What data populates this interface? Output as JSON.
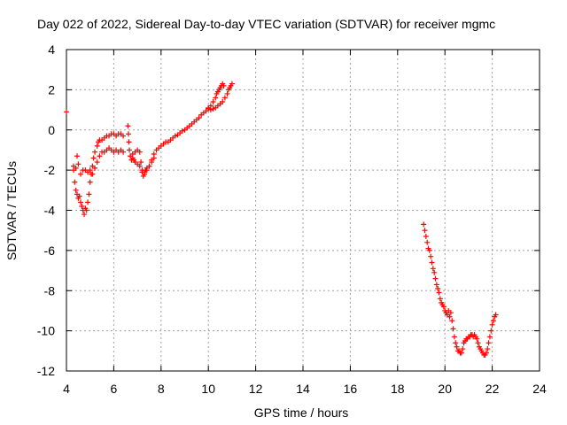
{
  "chart_data": {
    "type": "scatter",
    "title": "Day 022 of 2022, Sidereal Day-to-day VTEC variation (SDTVAR) for receiver mgmc",
    "xlabel": "GPS time / hours",
    "ylabel": "SDTVAR / TECUs",
    "xlim": [
      4,
      24
    ],
    "ylim": [
      -12,
      4
    ],
    "x_ticks": [
      4,
      6,
      8,
      10,
      12,
      14,
      16,
      18,
      20,
      22,
      24
    ],
    "y_ticks": [
      4,
      2,
      0,
      -2,
      -4,
      -6,
      -8,
      -10,
      -12
    ],
    "grid": true,
    "marker": "+",
    "colors": {
      "series": "#ff0000",
      "axes": "#000000",
      "grid": "#a0a0a0"
    },
    "series": [
      {
        "name": "mgmc",
        "segments": [
          [
            [
              4.0,
              0.9
            ]
          ],
          [
            [
              4.3,
              -1.8
            ],
            [
              4.4,
              -1.9
            ],
            [
              4.45,
              -1.3
            ],
            [
              4.5,
              -1.7
            ],
            [
              4.6,
              -2.2
            ],
            [
              4.7,
              -2.0
            ],
            [
              4.8,
              -2.0
            ],
            [
              4.9,
              -2.1
            ],
            [
              5.0,
              -2.0
            ],
            [
              5.1,
              -2.2
            ],
            [
              5.2,
              -1.9
            ],
            [
              5.3,
              -1.6
            ],
            [
              5.4,
              -1.3
            ],
            [
              5.5,
              -1.1
            ],
            [
              5.6,
              -1.1
            ],
            [
              5.7,
              -1.0
            ],
            [
              5.8,
              -0.9
            ],
            [
              5.9,
              -1.0
            ],
            [
              6.0,
              -1.1
            ],
            [
              6.1,
              -1.0
            ],
            [
              6.2,
              -1.1
            ],
            [
              6.3,
              -1.0
            ],
            [
              6.4,
              -1.1
            ]
          ],
          [
            [
              4.3,
              -2.0
            ],
            [
              4.35,
              -2.6
            ],
            [
              4.4,
              -3.0
            ],
            [
              4.45,
              -3.2
            ],
            [
              4.5,
              -3.4
            ],
            [
              4.55,
              -3.3
            ],
            [
              4.6,
              -3.6
            ],
            [
              4.65,
              -3.8
            ],
            [
              4.7,
              -4.0
            ],
            [
              4.75,
              -4.2
            ],
            [
              4.8,
              -3.9
            ],
            [
              4.85,
              -4.0
            ],
            [
              4.9,
              -3.6
            ],
            [
              4.95,
              -3.2
            ],
            [
              5.0,
              -2.6
            ],
            [
              5.05,
              -2.2
            ],
            [
              5.1,
              -1.8
            ],
            [
              5.15,
              -1.4
            ],
            [
              5.2,
              -1.1
            ],
            [
              5.3,
              -0.8
            ],
            [
              5.35,
              -0.6
            ],
            [
              5.4,
              -0.5
            ],
            [
              5.5,
              -0.5
            ],
            [
              5.6,
              -0.4
            ],
            [
              5.7,
              -0.3
            ],
            [
              5.8,
              -0.3
            ],
            [
              5.9,
              -0.2
            ],
            [
              6.0,
              -0.2
            ],
            [
              6.1,
              -0.3
            ],
            [
              6.2,
              -0.2
            ],
            [
              6.3,
              -0.2
            ],
            [
              6.4,
              -0.3
            ]
          ],
          [
            [
              6.6,
              0.2
            ],
            [
              6.62,
              -0.2
            ],
            [
              6.64,
              -0.6
            ],
            [
              6.66,
              -1.0
            ],
            [
              6.7,
              -1.3
            ],
            [
              6.75,
              -1.5
            ],
            [
              6.8,
              -1.4
            ],
            [
              6.85,
              -1.5
            ],
            [
              6.9,
              -1.6
            ],
            [
              7.0,
              -1.7
            ],
            [
              7.1,
              -1.8
            ],
            [
              7.2,
              -2.0
            ],
            [
              7.3,
              -2.1
            ],
            [
              7.35,
              -2.0
            ],
            [
              7.4,
              -1.9
            ],
            [
              7.5,
              -1.8
            ],
            [
              7.6,
              -1.6
            ],
            [
              7.7,
              -1.4
            ]
          ],
          [
            [
              6.8,
              -1.2
            ],
            [
              6.9,
              -1.1
            ],
            [
              7.0,
              -1.0
            ],
            [
              7.1,
              -1.1
            ],
            [
              7.15,
              -1.6
            ],
            [
              7.2,
              -2.1
            ],
            [
              7.25,
              -2.3
            ],
            [
              7.3,
              -2.2
            ],
            [
              7.4,
              -2.0
            ],
            [
              7.5,
              -1.8
            ],
            [
              7.6,
              -1.5
            ],
            [
              7.7,
              -1.2
            ],
            [
              7.8,
              -1.0
            ],
            [
              7.9,
              -0.9
            ],
            [
              8.0,
              -0.8
            ],
            [
              8.1,
              -0.7
            ],
            [
              8.2,
              -0.6
            ],
            [
              8.3,
              -0.6
            ],
            [
              8.4,
              -0.5
            ],
            [
              8.5,
              -0.4
            ],
            [
              8.6,
              -0.3
            ],
            [
              8.7,
              -0.25
            ],
            [
              8.8,
              -0.15
            ],
            [
              8.9,
              -0.05
            ],
            [
              9.0,
              0.0
            ],
            [
              9.1,
              0.1
            ],
            [
              9.2,
              0.2
            ],
            [
              9.3,
              0.3
            ],
            [
              9.4,
              0.4
            ],
            [
              9.5,
              0.5
            ],
            [
              9.6,
              0.6
            ],
            [
              9.7,
              0.75
            ],
            [
              9.8,
              0.85
            ],
            [
              9.9,
              0.95
            ],
            [
              10.0,
              1.05
            ],
            [
              10.1,
              1.0
            ],
            [
              10.2,
              1.05
            ],
            [
              10.3,
              1.1
            ],
            [
              10.4,
              1.2
            ],
            [
              10.5,
              1.3
            ],
            [
              10.6,
              1.4
            ],
            [
              10.7,
              1.6
            ],
            [
              10.8,
              1.8
            ],
            [
              10.85,
              2.0
            ],
            [
              10.9,
              2.1
            ],
            [
              10.95,
              2.2
            ],
            [
              11.0,
              2.3
            ]
          ],
          [
            [
              10.0,
              1.1
            ],
            [
              10.1,
              1.2
            ],
            [
              10.2,
              1.4
            ],
            [
              10.3,
              1.6
            ],
            [
              10.35,
              1.8
            ],
            [
              10.4,
              1.9
            ],
            [
              10.45,
              2.0
            ],
            [
              10.5,
              2.1
            ],
            [
              10.55,
              2.2
            ],
            [
              10.6,
              2.3
            ],
            [
              10.65,
              2.2
            ]
          ],
          [
            [
              19.1,
              -4.7
            ],
            [
              19.15,
              -5.0
            ],
            [
              19.2,
              -5.3
            ],
            [
              19.25,
              -5.6
            ],
            [
              19.3,
              -5.9
            ],
            [
              19.35,
              -6.0
            ],
            [
              19.4,
              -6.3
            ],
            [
              19.45,
              -6.6
            ],
            [
              19.5,
              -6.9
            ],
            [
              19.55,
              -7.1
            ],
            [
              19.6,
              -7.4
            ],
            [
              19.65,
              -7.7
            ],
            [
              19.7,
              -7.9
            ],
            [
              19.75,
              -8.1
            ],
            [
              19.8,
              -8.4
            ],
            [
              19.85,
              -8.6
            ],
            [
              19.9,
              -8.7
            ],
            [
              19.95,
              -8.8
            ],
            [
              20.0,
              -9.0
            ],
            [
              20.05,
              -9.1
            ],
            [
              20.1,
              -9.2
            ],
            [
              20.15,
              -9.0
            ],
            [
              20.2,
              -9.3
            ],
            [
              20.25,
              -9.1
            ],
            [
              20.3,
              -9.5
            ],
            [
              20.35,
              -9.9
            ],
            [
              20.4,
              -10.3
            ],
            [
              20.45,
              -10.6
            ],
            [
              20.5,
              -10.8
            ],
            [
              20.55,
              -11.0
            ],
            [
              20.6,
              -11.0
            ],
            [
              20.65,
              -11.1
            ],
            [
              20.7,
              -11.1
            ],
            [
              20.75,
              -10.9
            ],
            [
              20.8,
              -10.6
            ],
            [
              20.85,
              -10.5
            ],
            [
              20.9,
              -10.4
            ],
            [
              20.95,
              -10.4
            ],
            [
              21.0,
              -10.3
            ],
            [
              21.05,
              -10.3
            ],
            [
              21.1,
              -10.2
            ],
            [
              21.15,
              -10.2
            ],
            [
              21.2,
              -10.3
            ],
            [
              21.25,
              -10.2
            ],
            [
              21.3,
              -10.3
            ],
            [
              21.35,
              -10.4
            ],
            [
              21.4,
              -10.6
            ],
            [
              21.45,
              -10.8
            ],
            [
              21.5,
              -10.9
            ],
            [
              21.55,
              -11.0
            ],
            [
              21.6,
              -11.1
            ],
            [
              21.65,
              -11.2
            ],
            [
              21.7,
              -11.2
            ],
            [
              21.75,
              -11.1
            ],
            [
              21.8,
              -10.9
            ],
            [
              21.85,
              -10.6
            ],
            [
              21.9,
              -10.3
            ],
            [
              21.95,
              -10.0
            ],
            [
              22.0,
              -9.7
            ],
            [
              22.05,
              -9.5
            ],
            [
              22.1,
              -9.3
            ],
            [
              22.15,
              -9.2
            ]
          ]
        ]
      }
    ]
  }
}
